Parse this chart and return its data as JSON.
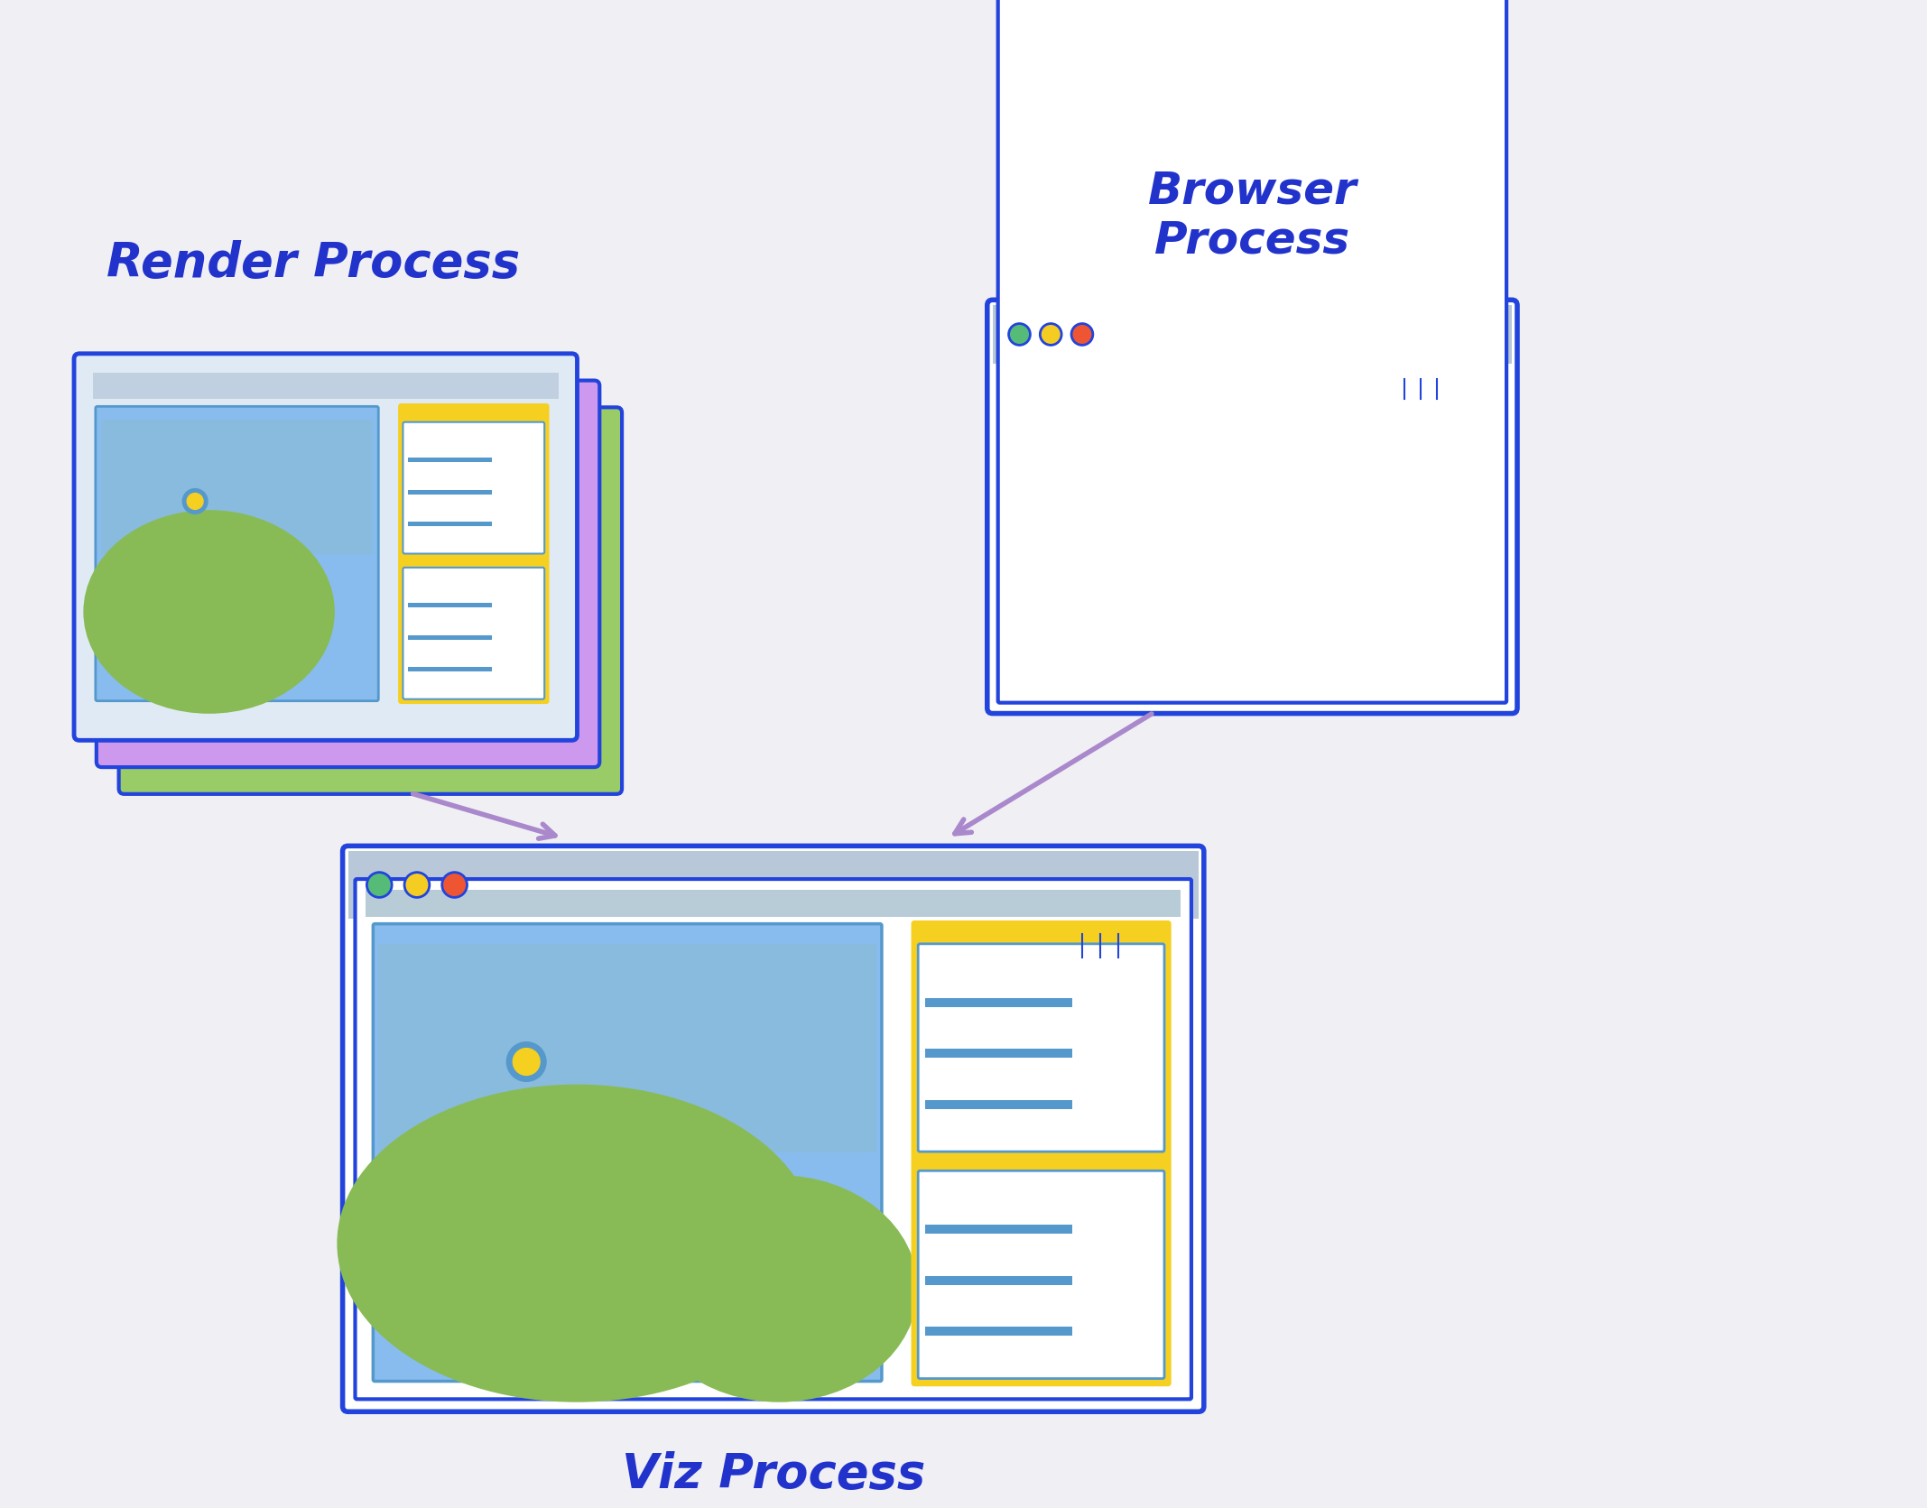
{
  "bg_color": "#f0f0f4",
  "blue": "#2244dd",
  "light_blue": "#88bbee",
  "mid_blue": "#5599cc",
  "gray_blue": "#aabbcc",
  "yellow": "#f5d020",
  "green": "#88bb55",
  "purple": "#cc99ee",
  "light_purple": "#ccaaee",
  "orange": "#ee8833",
  "white": "#ffffff",
  "arrow_color": "#aa88cc",
  "title_color": "#2233cc",
  "render_title": "Render Process",
  "browser_title": "Browser\nProcess",
  "viz_title": "Viz Process"
}
